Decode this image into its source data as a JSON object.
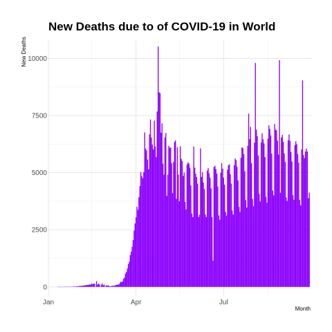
{
  "chart_data": {
    "type": "bar",
    "title": "New Deaths due to of COVID-19 in World",
    "xlabel": "Month",
    "ylabel": "New Deaths",
    "x_start": "2020-01-01",
    "x_end": "2020-09-30",
    "ylim": [
      -400,
      10800
    ],
    "y_ticks": [
      0,
      2500,
      5000,
      7500,
      10000
    ],
    "y_tick_labels": [
      "0",
      "2500",
      "5000",
      "7500",
      "10000"
    ],
    "x_ticks": [
      "2020-01-01",
      "2020-04-01",
      "2020-07-01"
    ],
    "x_tick_labels": [
      "Jan",
      "Apr",
      "Jul"
    ],
    "x_minor_ticks": [
      "2020-02-15",
      "2020-05-16",
      "2020-08-16"
    ],
    "grid": true,
    "legend": "none",
    "bar_color": "#8b00ff",
    "series": [
      {
        "start_date": "2020-01-11",
        "values": [
          1,
          0,
          0,
          0,
          0,
          0,
          0,
          0,
          0,
          0,
          0,
          0,
          0,
          0,
          4,
          9,
          18,
          16,
          14,
          24,
          26,
          26,
          38,
          43,
          46,
          45,
          57,
          64,
          66,
          73,
          86,
          89,
          97,
          108,
          97,
          146,
          121,
          143,
          143,
          5,
          252,
          98,
          139,
          108,
          2,
          97,
          148,
          69,
          101,
          2,
          65,
          64,
          66,
          42,
          24,
          26,
          48,
          48,
          44,
          53,
          89,
          86,
          101,
          101,
          150,
          224,
          214,
          240,
          353,
          407,
          576,
          653,
          802,
          1000,
          1098,
          1394,
          1540,
          1758,
          2052,
          2460,
          2779,
          3050,
          3510,
          3372,
          3926,
          4412,
          5026,
          4844,
          4752,
          5019,
          6761,
          6047,
          5969,
          5574,
          5148,
          6675,
          7326,
          6538,
          6233,
          6018,
          7276,
          6149,
          5681,
          7678,
          10521,
          8516,
          8481,
          6747,
          7158,
          5391,
          4912,
          6543,
          6734,
          3982,
          4910,
          6170,
          6089,
          6101,
          5408,
          4103,
          5467,
          6344,
          6409,
          3854,
          6115,
          4920,
          3752,
          6152,
          5601,
          5512,
          4856,
          5006,
          3719,
          3389,
          5356,
          5451,
          5397,
          5213,
          4440,
          3211,
          3052,
          6140,
          5218,
          4953,
          4805,
          4513,
          3059,
          3158,
          6062,
          4810,
          5013,
          4567,
          4285,
          3173,
          3062,
          5087,
          5198,
          4968,
          4776,
          4309,
          3057,
          1149,
          5253,
          5303,
          5149,
          4954,
          4392,
          3127,
          2939,
          4992,
          5419,
          5173,
          4783,
          4476,
          3281,
          3119,
          5127,
          5328,
          5361,
          4938,
          4520,
          3343,
          3164,
          5329,
          5617,
          5547,
          5255,
          4660,
          3511,
          3286,
          5650,
          6108,
          6071,
          5812,
          5061,
          3798,
          3471,
          6173,
          7584,
          6466,
          7007,
          5416,
          3852,
          3531,
          6311,
          9800,
          6878,
          6593,
          5752,
          4072,
          3736,
          6324,
          6719,
          6461,
          6276,
          5683,
          3948,
          3683,
          6490,
          7072,
          6914,
          6625,
          5834,
          4217,
          4007,
          7129,
          6883,
          6851,
          6400,
          5789,
          9924,
          4120,
          6538,
          6657,
          6347,
          5848,
          5471,
          3919,
          3763,
          6420,
          6669,
          6392,
          5898,
          5489,
          4016,
          3810,
          6208,
          6372,
          6240,
          5813,
          5436,
          3811,
          3566,
          6014,
          9036,
          5774,
          5638,
          5921,
          6052,
          5925,
          3879,
          4127
        ]
      }
    ]
  }
}
